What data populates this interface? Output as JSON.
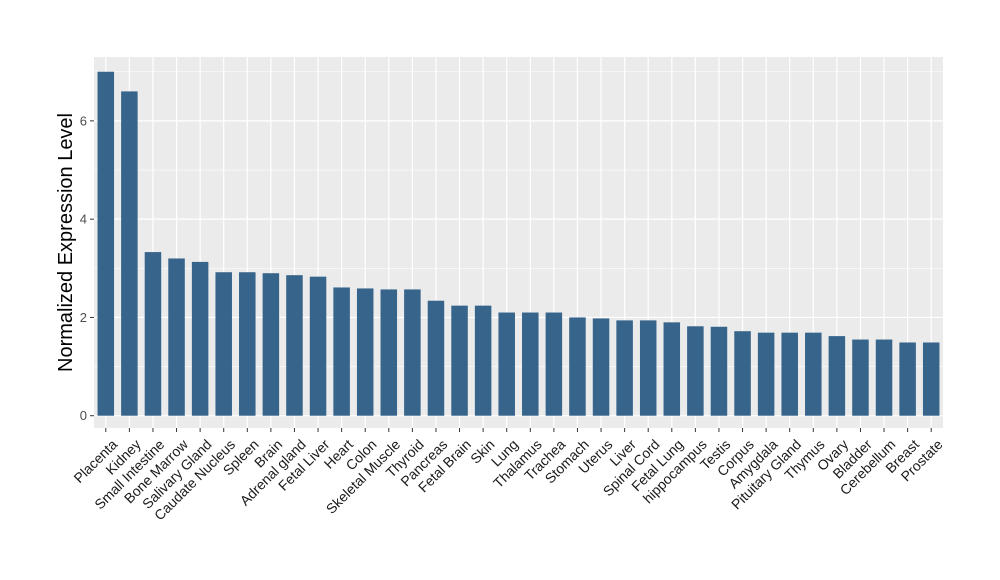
{
  "chart_data": {
    "type": "bar",
    "title": "",
    "xlabel": "",
    "ylabel": "Normalized Expression Level",
    "ylim": [
      -0.25,
      7.3
    ],
    "yticks": [
      0,
      2,
      4,
      6
    ],
    "grid": true,
    "legend": "none",
    "bar_color": "#36648B",
    "panel_color": "#EBEBEB",
    "grid_color": "#FFFFFF",
    "categories": [
      "Placenta",
      "Kidney",
      "Small Intestine",
      "Bone Marrow",
      "Salivary Gland",
      "Caudate Nucleus",
      "Spleen",
      "Brain",
      "Adrenal gland",
      "Fetal Liver",
      "Heart",
      "Colon",
      "Skeletal Muscle",
      "Thyroid",
      "Pancreas",
      "Fetal Brain",
      "Skin",
      "Lung",
      "Thalamus",
      "Trachea",
      "Stomach",
      "Uterus",
      "Liver",
      "Spinal Cord",
      "Fetal Lung",
      "hippocampus",
      "Testis",
      "Corpus",
      "Amygdala",
      "Pituitary Gland",
      "Thymus",
      "Ovary",
      "Bladder",
      "Cerebellum",
      "Breast",
      "Prostate"
    ],
    "values": [
      7.0,
      6.6,
      3.33,
      3.2,
      3.13,
      2.92,
      2.92,
      2.9,
      2.86,
      2.83,
      2.61,
      2.59,
      2.57,
      2.57,
      2.34,
      2.24,
      2.24,
      2.1,
      2.1,
      2.1,
      2.0,
      1.98,
      1.94,
      1.94,
      1.9,
      1.82,
      1.81,
      1.72,
      1.69,
      1.69,
      1.69,
      1.62,
      1.55,
      1.55,
      1.49,
      1.49
    ]
  }
}
